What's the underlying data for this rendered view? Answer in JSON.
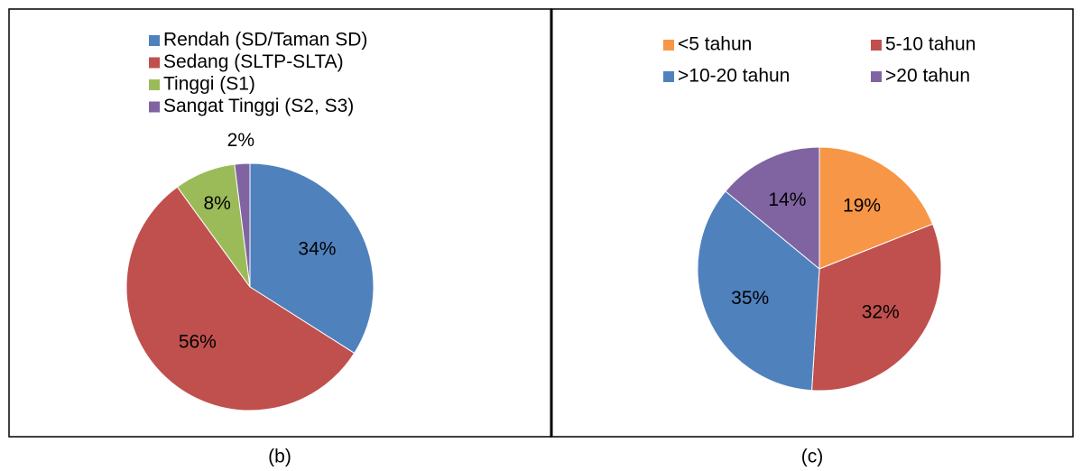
{
  "chart_data": [
    {
      "type": "pie",
      "caption": "(b)",
      "legend": "top-stacked",
      "categories": [
        "Rendah (SD/Taman SD)",
        "Sedang (SLTP-SLTA)",
        "Tinggi (S1)",
        "Sangat Tinggi (S2, S3)"
      ],
      "values": [
        34,
        56,
        8,
        2
      ],
      "value_labels": [
        "34%",
        "56%",
        "8%",
        "2%"
      ],
      "colors": [
        "#4f81bd",
        "#c0504d",
        "#9bbb59",
        "#8064a2"
      ]
    },
    {
      "type": "pie",
      "caption": "(c)",
      "legend": "top-grid",
      "categories": [
        "<5 tahun",
        "5-10 tahun",
        ">10-20 tahun",
        ">20 tahun"
      ],
      "values": [
        19,
        32,
        35,
        14
      ],
      "value_labels": [
        "19%",
        "32%",
        "35%",
        "14%"
      ],
      "colors": [
        "#f79646",
        "#c0504d",
        "#4f81bd",
        "#8064a2"
      ]
    }
  ]
}
